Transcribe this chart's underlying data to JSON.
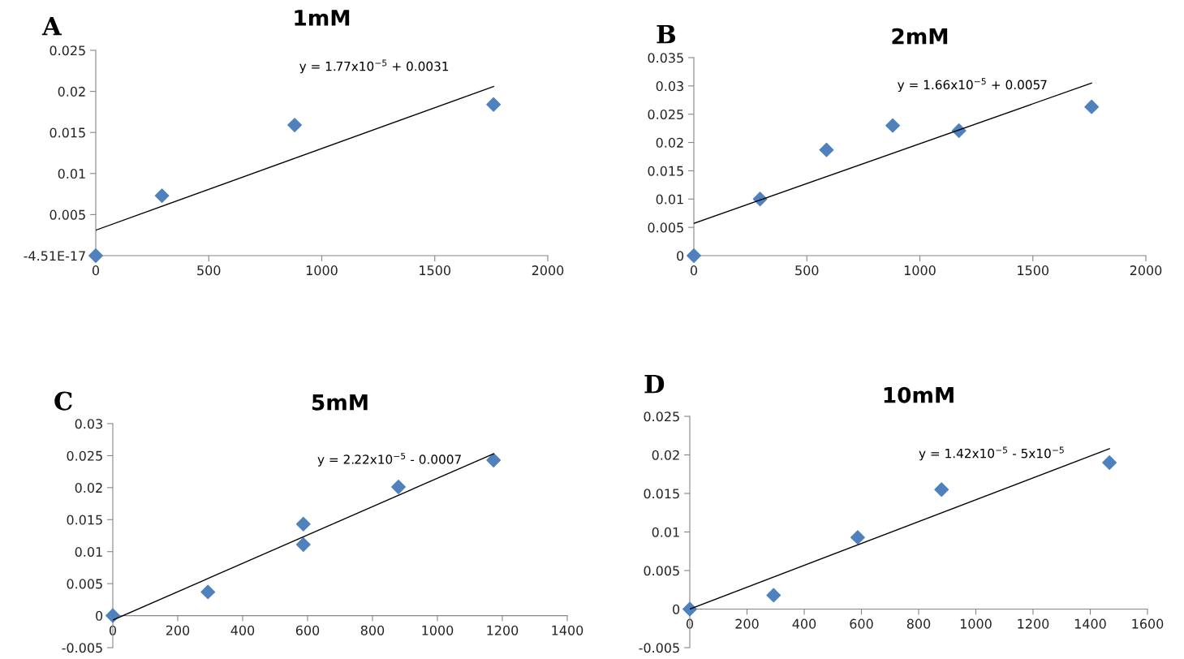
{
  "chart_data": [
    {
      "type": "scatter",
      "title": "1mM",
      "annotations": [
        "A",
        "y = 1.77x10$^{−5}$ + 0.0031"
      ],
      "xlim": [
        0,
        2000
      ],
      "xticks": [
        0,
        500,
        1000,
        1500,
        2000
      ],
      "ylim": [
        0,
        0.025
      ],
      "yticks": [
        {
          "value": 0,
          "label": "-4.51E-17"
        },
        0.005,
        0.01,
        0.015,
        0.02,
        0.025
      ],
      "grid": false,
      "legend": false,
      "series": [
        {
          "marker": "diamond",
          "color": "#4f81bd",
          "x": [
            0,
            293,
            880,
            1760
          ],
          "values": [
            0,
            0.0073,
            0.0159,
            0.0184
          ]
        },
        {
          "type": "line",
          "marker": "none",
          "line_style": "solid",
          "color": "#000000",
          "x": [
            0,
            1760
          ],
          "values": [
            0.0031,
            0.0206
          ]
        }
      ]
    },
    {
      "type": "scatter",
      "title": "2mM",
      "annotations": [
        "B",
        "y = 1.66x10$^{−5}$ + 0.0057"
      ],
      "xlim": [
        0,
        2000
      ],
      "xticks": [
        0,
        500,
        1000,
        1500,
        2000
      ],
      "ylim": [
        0,
        0.035
      ],
      "yticks": [
        0,
        0.005,
        0.01,
        0.015,
        0.02,
        0.025,
        0.03,
        0.035
      ],
      "grid": false,
      "legend": false,
      "series": [
        {
          "marker": "diamond",
          "color": "#4f81bd",
          "x": [
            0,
            293,
            587,
            880,
            1173,
            1760
          ],
          "values": [
            0,
            0.01,
            0.0187,
            0.023,
            0.0221,
            0.0263
          ]
        },
        {
          "type": "line",
          "marker": "none",
          "line_style": "solid",
          "color": "#000000",
          "x": [
            0,
            1760
          ],
          "values": [
            0.0057,
            0.0305
          ]
        }
      ]
    },
    {
      "type": "scatter",
      "title": "5mM",
      "annotations": [
        "C",
        "y = 2.22x10$^{−5}$ - 0.0007"
      ],
      "xlim": [
        0,
        1400
      ],
      "xticks": [
        0,
        200,
        400,
        600,
        800,
        1000,
        1200,
        1400
      ],
      "ylim": [
        -0.005,
        0.03
      ],
      "yticks": [
        -0.005,
        0,
        0.005,
        0.01,
        0.015,
        0.02,
        0.025,
        0.03
      ],
      "grid": false,
      "legend": false,
      "series": [
        {
          "marker": "diamond",
          "color": "#4f81bd",
          "x": [
            0,
            293,
            587,
            587,
            880,
            1173
          ],
          "values": [
            0,
            0.0037,
            0.0143,
            0.0111,
            0.0201,
            0.0243
          ]
        },
        {
          "type": "line",
          "marker": "none",
          "line_style": "solid",
          "color": "#000000",
          "x": [
            0,
            1173
          ],
          "values": [
            -0.0007,
            0.0253
          ]
        }
      ]
    },
    {
      "type": "scatter",
      "title": "10mM",
      "annotations": [
        "D",
        "y = 1.42x10$^{−5}$ - 5x10$^{−5}$"
      ],
      "xlim": [
        0,
        1600
      ],
      "xticks": [
        0,
        200,
        400,
        600,
        800,
        1000,
        1200,
        1400,
        1600
      ],
      "ylim": [
        -0.005,
        0.025
      ],
      "yticks": [
        -0.005,
        0,
        0.005,
        0.01,
        0.015,
        0.02,
        0.025
      ],
      "grid": false,
      "legend": false,
      "series": [
        {
          "marker": "diamond",
          "color": "#4f81bd",
          "x": [
            0,
            293,
            587,
            880,
            1467
          ],
          "values": [
            0,
            0.0018,
            0.0093,
            0.0155,
            0.019
          ]
        },
        {
          "type": "line",
          "marker": "none",
          "line_style": "solid",
          "color": "#000000",
          "x": [
            0,
            1467
          ],
          "values": [
            0,
            0.0208
          ]
        }
      ]
    }
  ]
}
